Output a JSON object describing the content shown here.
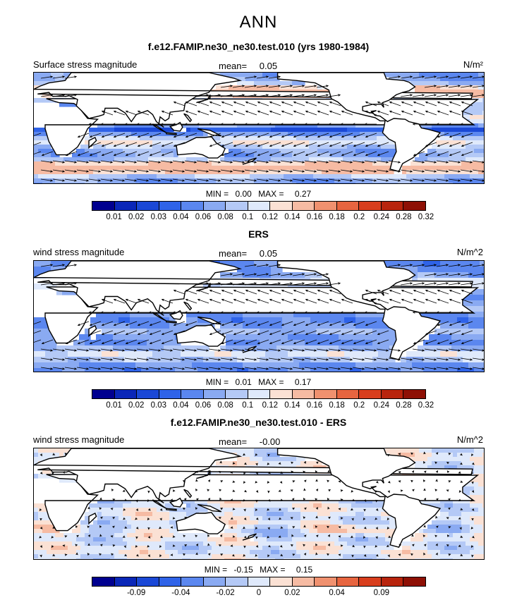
{
  "season": "ANN",
  "colors": {
    "seq": [
      "#00008f",
      "#0a27b8",
      "#1a48d6",
      "#2f63e8",
      "#5b87ef",
      "#8aaaf2",
      "#b4c9f6",
      "#dfe9fb",
      "#fbe1d4",
      "#f6bba3",
      "#f0916f",
      "#e76540",
      "#d83e1d",
      "#b8240d",
      "#8e1005"
    ],
    "diff": [
      "#00008f",
      "#0a27b8",
      "#1a48d6",
      "#2f63e8",
      "#5b87ef",
      "#8aaaf2",
      "#b4c9f6",
      "#dfe9fb",
      "#fbe1d4",
      "#f6bba3",
      "#f0916f",
      "#e76540",
      "#d83e1d",
      "#b8240d",
      "#8e1005"
    ],
    "land": "#ffffff"
  },
  "panels": [
    {
      "title": "f.e12.FAMIP.ne30_ne30.test.010 (yrs 1980-1984)",
      "field_label": "Surface stress magnitude",
      "mean_label": "mean=",
      "mean_value": "0.05",
      "units": "N/m²",
      "min_label": "MIN =",
      "min_value": "0.00",
      "max_label": "MAX =",
      "max_value": "0.27",
      "ticks": [
        "0.01",
        "0.02",
        "0.03",
        "0.04",
        "0.06",
        "0.08",
        "0.1",
        "0.12",
        "0.14",
        "0.16",
        "0.18",
        "0.2",
        "0.24",
        "0.28",
        "0.32"
      ],
      "style": "model"
    },
    {
      "title": "ERS",
      "field_label": "wind stress magnitude",
      "mean_label": "mean=",
      "mean_value": "0.05",
      "units": "N/m^2",
      "min_label": "MIN =",
      "min_value": "0.01",
      "max_label": "MAX =",
      "max_value": "0.17",
      "ticks": [
        "0.01",
        "0.02",
        "0.03",
        "0.04",
        "0.06",
        "0.08",
        "0.1",
        "0.12",
        "0.14",
        "0.16",
        "0.18",
        "0.2",
        "0.24",
        "0.28",
        "0.32"
      ],
      "style": "obs"
    },
    {
      "title": "f.e12.FAMIP.ne30_ne30.test.010 - ERS",
      "field_label": "wind stress magnitude",
      "mean_label": "mean=",
      "mean_value": "-0.00",
      "units": "N/m^2",
      "min_label": "MIN =",
      "min_value": "-0.15",
      "max_label": "MAX =",
      "max_value": "0.15",
      "ticks": [
        "-0.09",
        "-0.04",
        "-0.02",
        "0",
        "0.02",
        "0.04",
        "0.09"
      ],
      "style": "diff"
    }
  ]
}
